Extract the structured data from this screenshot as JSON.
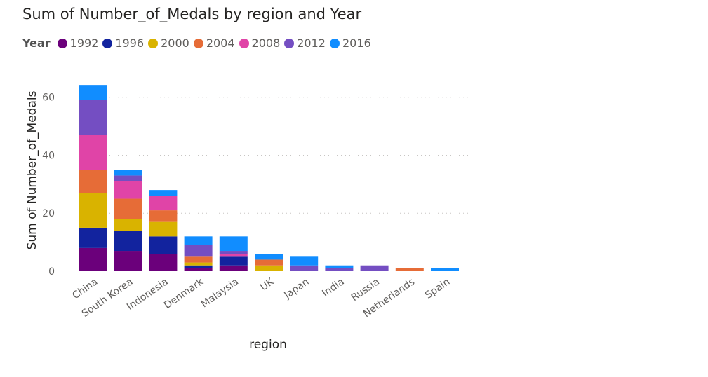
{
  "chart_data": {
    "type": "bar",
    "stacked": true,
    "title": "Sum of Number_of_Medals by region and Year",
    "xlabel": "region",
    "ylabel": "Sum of Number_of_Medals",
    "ylim": [
      0,
      65
    ],
    "yticks": [
      0,
      20,
      40,
      60
    ],
    "grid": true,
    "legend_title": "Year",
    "legend_position": "top-left",
    "categories": [
      "China",
      "South Korea",
      "Indonesia",
      "Denmark",
      "Malaysia",
      "UK",
      "Japan",
      "India",
      "Russia",
      "Netherlands",
      "Spain"
    ],
    "series": [
      {
        "name": "1992",
        "color": "#6b007b",
        "values": [
          8,
          7,
          6,
          1,
          2,
          0,
          0,
          0,
          0,
          0,
          0
        ]
      },
      {
        "name": "1996",
        "color": "#12239e",
        "values": [
          7,
          7,
          6,
          1,
          3,
          0,
          0,
          0,
          0,
          0,
          0
        ]
      },
      {
        "name": "2000",
        "color": "#d9b300",
        "values": [
          12,
          4,
          5,
          1,
          0,
          2,
          0,
          0,
          0,
          0,
          0
        ]
      },
      {
        "name": "2004",
        "color": "#e66c37",
        "values": [
          8,
          7,
          4,
          2,
          0,
          2,
          0,
          0,
          0,
          1,
          0
        ]
      },
      {
        "name": "2008",
        "color": "#e044a7",
        "values": [
          12,
          6,
          5,
          0,
          1,
          0,
          0,
          0,
          0,
          0,
          0
        ]
      },
      {
        "name": "2012",
        "color": "#744ec2",
        "values": [
          12,
          2,
          0,
          4,
          1,
          0,
          2,
          1,
          2,
          0,
          0
        ]
      },
      {
        "name": "2016",
        "color": "#118dff",
        "values": [
          5,
          2,
          2,
          3,
          5,
          2,
          3,
          1,
          0,
          0,
          1
        ]
      }
    ]
  }
}
